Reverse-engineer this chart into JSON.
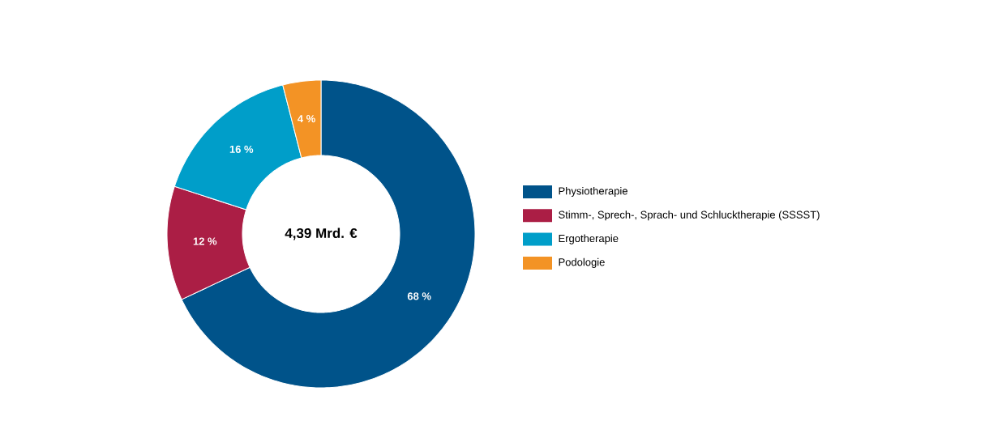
{
  "chart_data": {
    "type": "donut",
    "categories": [
      "Physiotherapie",
      "Stimm-, Sprech-, Sprach- und Schlucktherapie (SSSST)",
      "Ergotherapie",
      "Podologie"
    ],
    "values": [
      68,
      12,
      16,
      4
    ],
    "value_labels": [
      "68 %",
      "12 %",
      "16 %",
      "4 %"
    ],
    "colors": [
      "#00538a",
      "#ab1e45",
      "#009ec9",
      "#f39325"
    ],
    "legend": "right",
    "annotations": [
      "4,39 Mrd. €"
    ]
  }
}
